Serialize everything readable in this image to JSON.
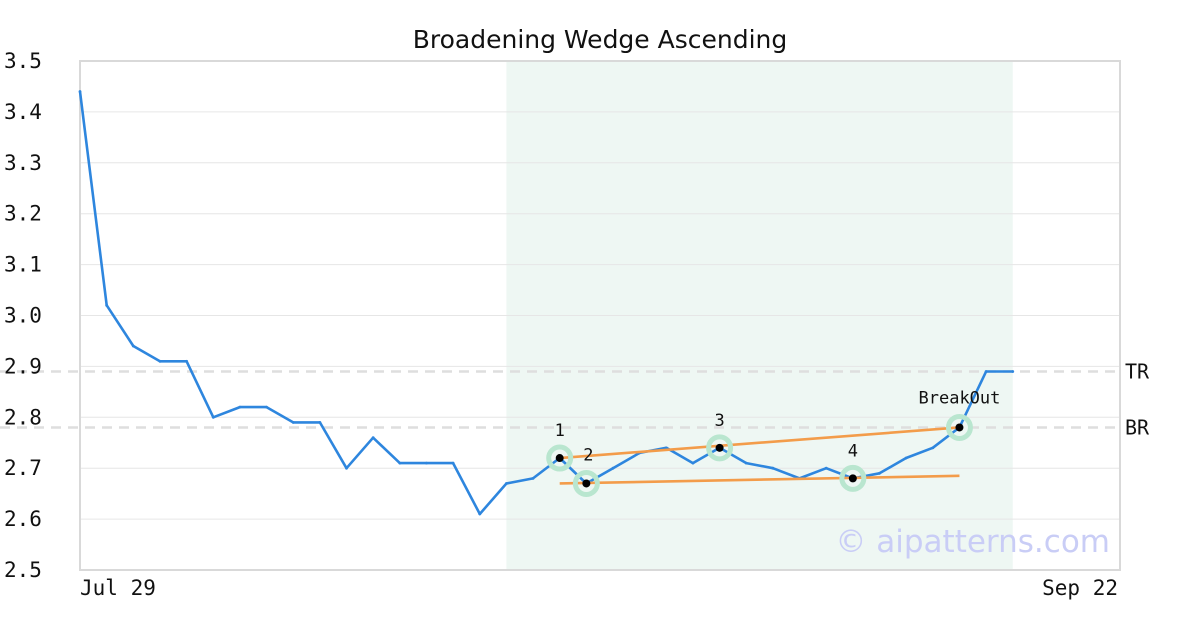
{
  "chart_data": {
    "type": "line",
    "title": "Broadening Wedge Ascending",
    "xlabel": "",
    "ylabel": "",
    "ylim": [
      2.5,
      3.5
    ],
    "yticks": [
      "3.5",
      "3.4",
      "3.3",
      "3.2",
      "3.1",
      "3.0",
      "2.9",
      "2.8",
      "2.7",
      "2.6",
      "2.5"
    ],
    "xtick_labels": {
      "start": "Jul 29",
      "end": "Sep 22"
    },
    "grid": true,
    "series": [
      {
        "color": "#2e86de",
        "values": [
          3.44,
          3.02,
          2.94,
          2.91,
          2.91,
          2.8,
          2.82,
          2.82,
          2.79,
          2.79,
          2.7,
          2.76,
          2.71,
          2.71,
          2.71,
          2.61,
          2.67,
          2.68,
          2.72,
          2.67,
          2.7,
          2.73,
          2.74,
          2.71,
          2.74,
          2.71,
          2.7,
          2.68,
          2.7,
          2.68,
          2.69,
          2.72,
          2.74,
          2.78,
          2.89,
          2.89
        ]
      }
    ],
    "highlight_region": {
      "from_index": 16,
      "to_index": 35,
      "color": "#eef7f3"
    },
    "levels": [
      {
        "label": "TR",
        "value": 2.89
      },
      {
        "label": "BR",
        "value": 2.78
      }
    ],
    "trendlines": [
      {
        "color": "#f39c4a",
        "from": {
          "index": 18,
          "value": 2.72
        },
        "to": {
          "index": 33,
          "value": 2.78
        }
      },
      {
        "color": "#f39c4a",
        "from": {
          "index": 18,
          "value": 2.67
        },
        "to": {
          "index": 33,
          "value": 2.685
        }
      }
    ],
    "points": [
      {
        "label": "1",
        "index": 18,
        "value": 2.72,
        "label_pos": "above"
      },
      {
        "label": "2",
        "index": 19,
        "value": 2.67,
        "label_pos": "above-right"
      },
      {
        "label": "3",
        "index": 24,
        "value": 2.74,
        "label_pos": "above"
      },
      {
        "label": "4",
        "index": 29,
        "value": 2.68,
        "label_pos": "above"
      },
      {
        "label": "BreakOut",
        "index": 33,
        "value": 2.78,
        "label_pos": "above"
      }
    ],
    "watermark": "© aipatterns.com"
  }
}
